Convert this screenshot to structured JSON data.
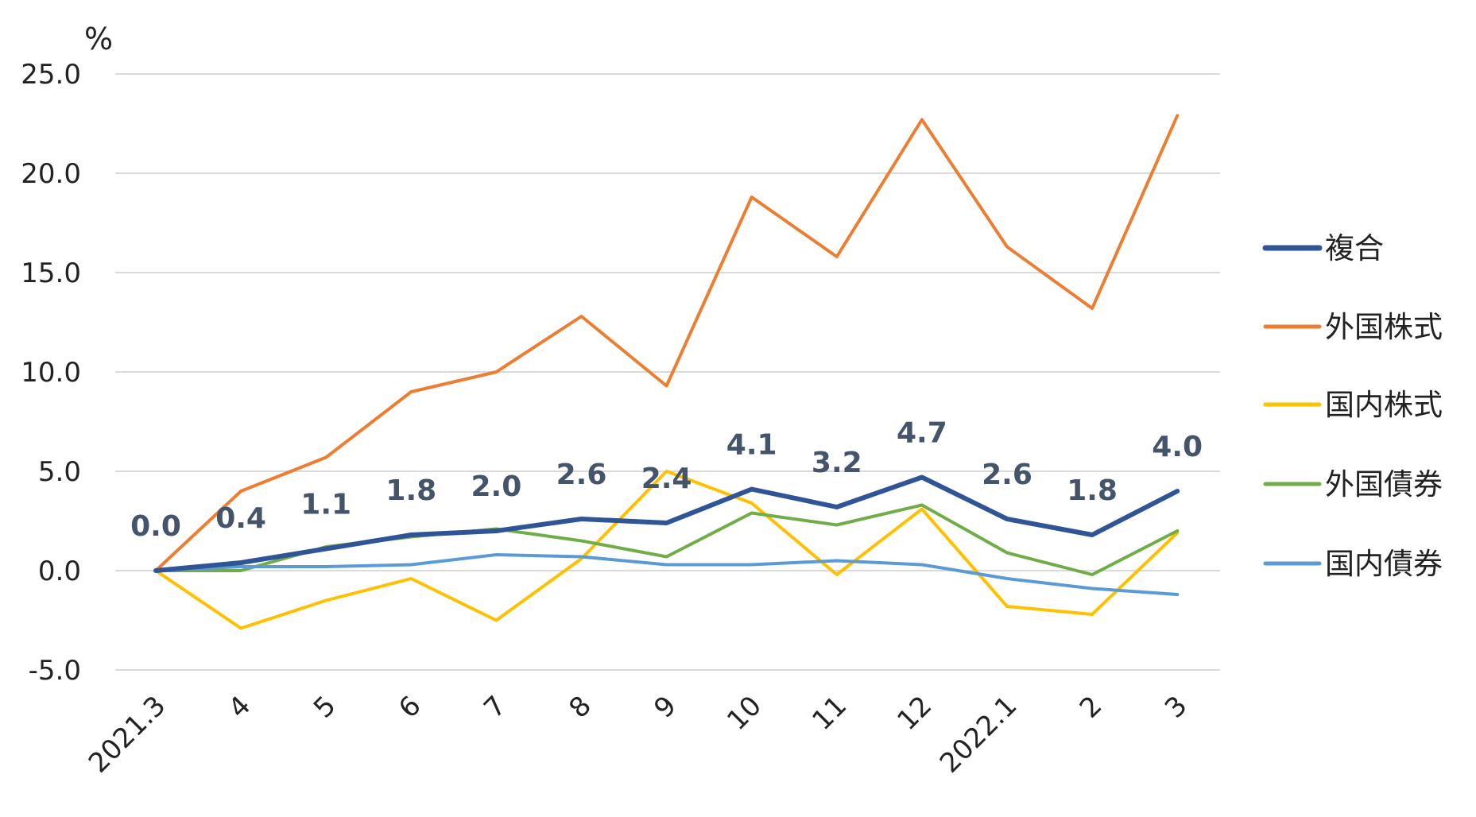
{
  "chart_data": {
    "type": "line",
    "ylabel": "%",
    "ylim": [
      -5,
      25
    ],
    "yticks": [
      "25.0",
      "20.0",
      "15.0",
      "10.0",
      "5.0",
      "0.0",
      "-5.0"
    ],
    "ytick_values": [
      25,
      20,
      15,
      10,
      5,
      0,
      -5
    ],
    "grid": true,
    "legend_position": "right",
    "categories": [
      "2021.3",
      "4",
      "5",
      "6",
      "7",
      "8",
      "9",
      "10",
      "11",
      "12",
      "2022.1",
      "2",
      "3"
    ],
    "series": [
      {
        "name": "複合",
        "color": "#2f5597",
        "width": "thick",
        "labeled": true,
        "values": [
          0.0,
          0.4,
          1.1,
          1.8,
          2.0,
          2.6,
          2.4,
          4.1,
          3.2,
          4.7,
          2.6,
          1.8,
          4.0
        ],
        "labels": [
          "0.0",
          "0.4",
          "1.1",
          "1.8",
          "2.0",
          "2.6",
          "2.4",
          "4.1",
          "3.2",
          "4.7",
          "2.6",
          "1.8",
          "4.0"
        ]
      },
      {
        "name": "外国株式",
        "color": "#ed7d31",
        "width": "normal",
        "values": [
          0.0,
          4.0,
          5.7,
          9.0,
          10.0,
          12.8,
          9.3,
          18.8,
          15.8,
          22.7,
          16.3,
          13.2,
          22.9
        ]
      },
      {
        "name": "国内株式",
        "color": "#ffc000",
        "width": "normal",
        "values": [
          0.0,
          -2.9,
          -1.5,
          -0.4,
          -2.5,
          0.6,
          5.0,
          3.4,
          -0.2,
          3.1,
          -1.8,
          -2.2,
          1.9
        ]
      },
      {
        "name": "外国債券",
        "color": "#70ad47",
        "width": "normal",
        "values": [
          0.0,
          0.0,
          1.2,
          1.7,
          2.1,
          1.5,
          0.7,
          2.9,
          2.3,
          3.3,
          0.9,
          -0.2,
          2.0
        ]
      },
      {
        "name": "国内債券",
        "color": "#5b9bd5",
        "width": "normal",
        "values": [
          0.0,
          0.2,
          0.2,
          0.3,
          0.8,
          0.7,
          0.3,
          0.3,
          0.5,
          0.3,
          -0.4,
          -0.9,
          -1.2
        ]
      }
    ],
    "colors": {
      "grid": "#d9d9d9",
      "text": "#222222",
      "label": "#44546a"
    }
  }
}
